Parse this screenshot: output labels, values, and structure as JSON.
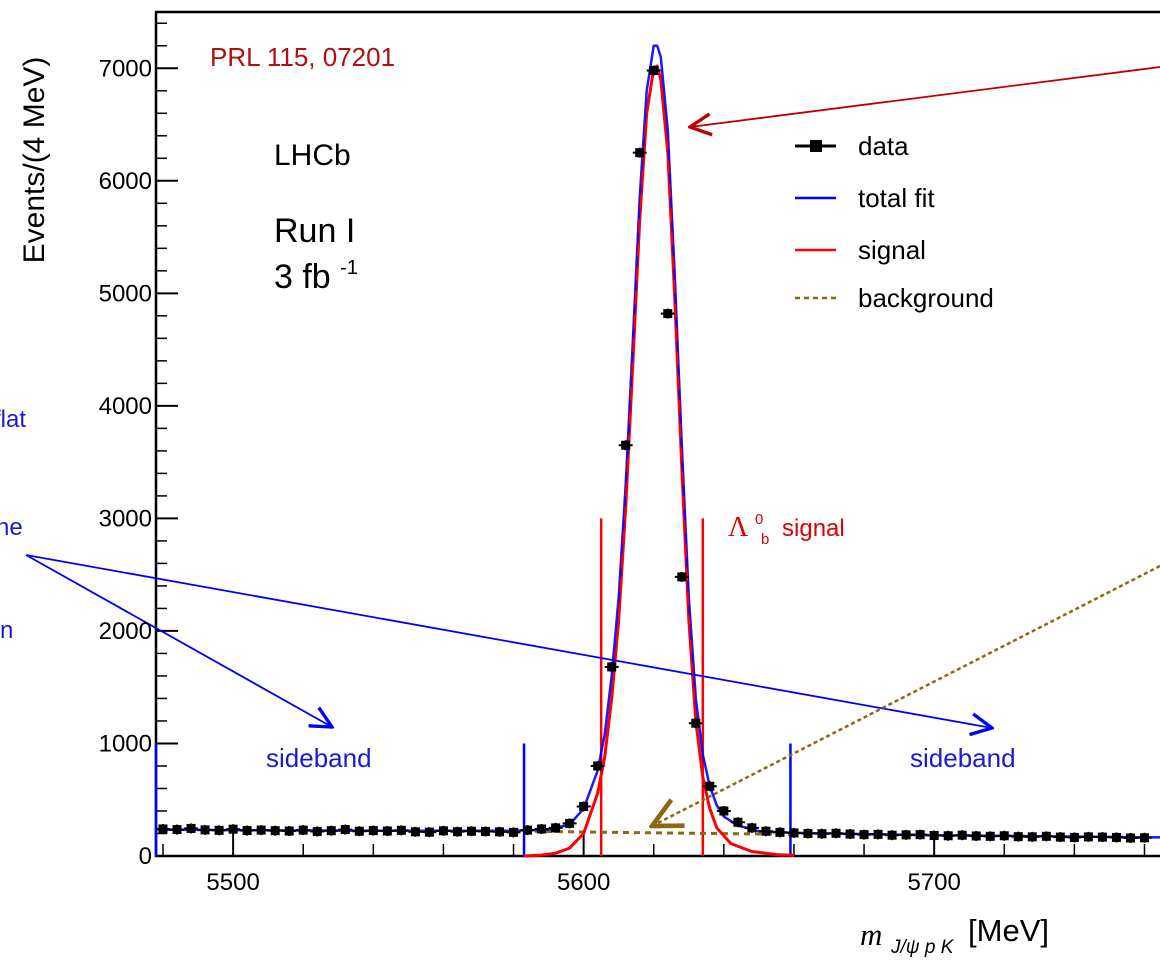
{
  "chart_data": {
    "type": "scatter",
    "title": "",
    "xlabel_main": "m",
    "xlabel_sub": "J/ψ p K",
    "xlabel_unit": "[MeV]",
    "ylabel": "Events/(4 MeV)",
    "xlim": [
      5478,
      5765
    ],
    "ylim": [
      0,
      7500
    ],
    "x_ticks": [
      5500,
      5600,
      5700
    ],
    "y_ticks": [
      0,
      1000,
      2000,
      3000,
      4000,
      5000,
      6000,
      7000
    ],
    "grid": false,
    "legend_position": "top-right",
    "legend": {
      "data": "data",
      "total_fit": "total fit",
      "signal": "signal",
      "background": "background"
    },
    "series": [
      {
        "name": "data",
        "style": "points",
        "color": "#000000",
        "x": [
          5480,
          5484,
          5488,
          5492,
          5496,
          5500,
          5504,
          5508,
          5512,
          5516,
          5520,
          5524,
          5528,
          5532,
          5536,
          5540,
          5544,
          5548,
          5552,
          5556,
          5560,
          5564,
          5568,
          5572,
          5576,
          5580,
          5584,
          5588,
          5592,
          5596,
          5600,
          5604,
          5608,
          5612,
          5616,
          5620,
          5624,
          5628,
          5632,
          5636,
          5640,
          5644,
          5648,
          5652,
          5656,
          5660,
          5664,
          5668,
          5672,
          5676,
          5680,
          5684,
          5688,
          5692,
          5696,
          5700,
          5704,
          5708,
          5712,
          5716,
          5720,
          5724,
          5728,
          5732,
          5736,
          5740,
          5744,
          5748,
          5752,
          5756,
          5760
        ],
        "y": [
          240,
          235,
          245,
          232,
          228,
          238,
          226,
          230,
          225,
          222,
          230,
          218,
          225,
          235,
          220,
          226,
          222,
          228,
          215,
          212,
          224,
          216,
          220,
          218,
          215,
          210,
          230,
          240,
          250,
          290,
          440,
          800,
          1680,
          3650,
          6250,
          6980,
          4820,
          2480,
          1180,
          620,
          400,
          300,
          250,
          220,
          210,
          205,
          200,
          198,
          202,
          195,
          190,
          192,
          185,
          188,
          190,
          182,
          180,
          185,
          178,
          175,
          180,
          172,
          170,
          175,
          168,
          165,
          170,
          168,
          165,
          160,
          162
        ]
      },
      {
        "name": "total fit",
        "style": "line",
        "color": "#0000ff",
        "x": [
          5478,
          5500,
          5540,
          5580,
          5590,
          5596,
          5600,
          5604,
          5606,
          5608,
          5610,
          5612,
          5614,
          5616,
          5618,
          5620,
          5621,
          5622,
          5624,
          5626,
          5628,
          5630,
          5632,
          5634,
          5636,
          5638,
          5640,
          5644,
          5650,
          5660,
          5700,
          5765
        ],
        "y": [
          235,
          230,
          225,
          225,
          235,
          280,
          420,
          760,
          1080,
          1600,
          2300,
          3300,
          4550,
          5850,
          6800,
          7200,
          7200,
          7100,
          6450,
          5150,
          3650,
          2300,
          1400,
          900,
          620,
          450,
          350,
          270,
          220,
          205,
          185,
          165
        ]
      },
      {
        "name": "signal",
        "style": "line",
        "color": "#ff0000",
        "x": [
          5583,
          5588,
          5592,
          5596,
          5600,
          5604,
          5606,
          5608,
          5610,
          5612,
          5614,
          5616,
          5618,
          5620,
          5621,
          5622,
          5624,
          5626,
          5628,
          5630,
          5632,
          5634,
          5636,
          5638,
          5642,
          5648,
          5655,
          5660
        ],
        "y": [
          0,
          8,
          25,
          70,
          200,
          560,
          880,
          1400,
          2100,
          3100,
          4350,
          5650,
          6600,
          7000,
          7020,
          6900,
          6250,
          4950,
          3450,
          2100,
          1200,
          700,
          420,
          250,
          110,
          40,
          12,
          5
        ]
      },
      {
        "name": "background",
        "style": "dashed",
        "color": "#8b6914",
        "x": [
          5583,
          5600,
          5620,
          5640,
          5660
        ],
        "y": [
          220,
          213,
          206,
          199,
          192
        ]
      }
    ],
    "annotations": {
      "reference": "PRL 115, 07201",
      "experiment": "LHCb",
      "run": "Run I",
      "lumi_main": "3 fb",
      "lumi_sup": "-1",
      "signal_region": "signal",
      "sideband_left": "sideband",
      "sideband_right": "sideband",
      "left_text": [
        "flat",
        "he",
        "n"
      ]
    },
    "region_lines": {
      "blue": [
        5478,
        5583,
        5659,
        5765
      ],
      "red": [
        5605,
        5634
      ]
    }
  }
}
